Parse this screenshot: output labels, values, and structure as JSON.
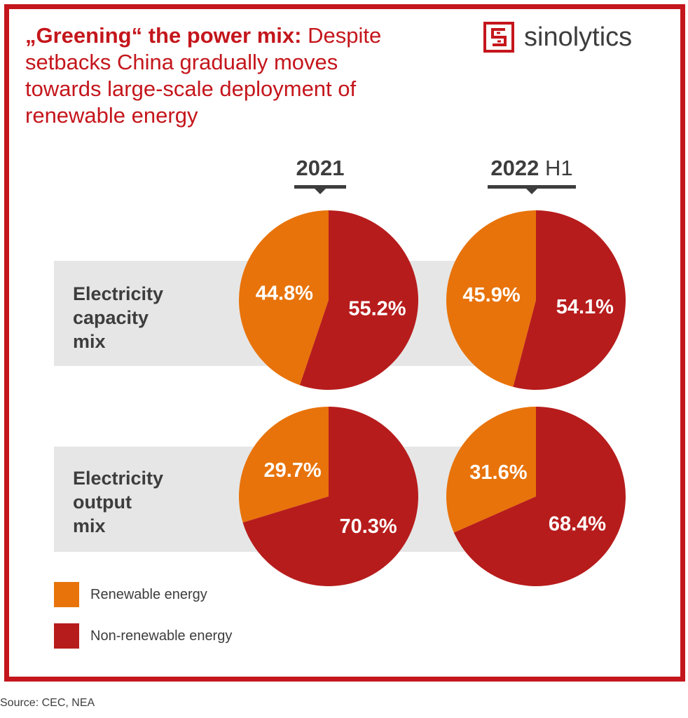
{
  "headline": {
    "bold": "„Greening“ the power mix:",
    "rest": "Despite setbacks China gradually moves towards large-scale deployment of renewable energy"
  },
  "brand": {
    "name": "sinolytics"
  },
  "colors": {
    "accent": "#c4161c",
    "renewable": "#e8730a",
    "non_renewable": "#b71c1c",
    "band": "#e6e6e6",
    "text": "#3d3d3d"
  },
  "columns": [
    {
      "year": "2021",
      "suffix": ""
    },
    {
      "year": "2022",
      "suffix": " H1"
    }
  ],
  "rows": [
    {
      "label": "Electricity\ncapacity\nmix"
    },
    {
      "label": "Electricity\noutput\nmix"
    }
  ],
  "legend": {
    "renewable": "Renewable energy",
    "non_renewable": "Non-renewable energy"
  },
  "source": "Source: CEC, NEA",
  "chart_data": [
    {
      "type": "pie",
      "title": "2021",
      "subtitle": "Electricity capacity mix",
      "categories": [
        "Renewable energy",
        "Non-renewable energy"
      ],
      "values": [
        44.8,
        55.2
      ],
      "labels": [
        "44.8%",
        "55.2%"
      ]
    },
    {
      "type": "pie",
      "title": "2022 H1",
      "subtitle": "Electricity capacity mix",
      "categories": [
        "Renewable energy",
        "Non-renewable energy"
      ],
      "values": [
        45.9,
        54.1
      ],
      "labels": [
        "45.9%",
        "54.1%"
      ]
    },
    {
      "type": "pie",
      "title": "2021",
      "subtitle": "Electricity output mix",
      "categories": [
        "Renewable energy",
        "Non-renewable energy"
      ],
      "values": [
        29.7,
        70.3
      ],
      "labels": [
        "29.7%",
        "70.3%"
      ]
    },
    {
      "type": "pie",
      "title": "2022 H1",
      "subtitle": "Electricity output mix",
      "categories": [
        "Renewable energy",
        "Non-renewable energy"
      ],
      "values": [
        31.6,
        68.4
      ],
      "labels": [
        "31.6%",
        "68.4%"
      ]
    }
  ]
}
